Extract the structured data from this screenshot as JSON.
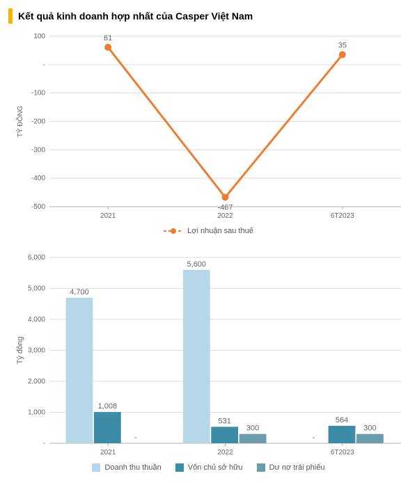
{
  "title": "Kết quả kinh doanh hợp nhất của Casper Việt Nam",
  "accent_color": "#f7b500",
  "line_chart": {
    "type": "line",
    "ylabel": "TỶ ĐỒNG",
    "label_fontsize": 10,
    "categories": [
      "2021",
      "2022",
      "6T2023"
    ],
    "values": [
      61,
      -467,
      35
    ],
    "line_color": "#ed7d31",
    "line_width": 3,
    "marker_color": "#ed7d31",
    "marker_size": 5,
    "ylim": [
      -500,
      100
    ],
    "ytick_step": 100,
    "grid_color": "#dcdcdc",
    "axis_color": "#b0b0b0",
    "text_color": "#666666",
    "legend_label": "Lợi nhuận sau thuế",
    "data_label_fontsize": 11,
    "tick_fontsize": 10
  },
  "bar_chart": {
    "type": "grouped_bar",
    "ylabel": "Tỷ đồng",
    "label_fontsize": 11,
    "categories": [
      "2021",
      "2022",
      "6T2023"
    ],
    "series": [
      {
        "name": "Doanh thu thuần",
        "color": "#b6d7e8",
        "values": [
          4700,
          5600,
          null
        ]
      },
      {
        "name": "Vốn chủ sở hữu",
        "color": "#3c8ca8",
        "values": [
          1008,
          531,
          564
        ]
      },
      {
        "name": "Dư nợ trái phiếu",
        "color": "#6a9cad",
        "values": [
          null,
          300,
          300
        ]
      }
    ],
    "data_labels": {
      "2021": [
        "4,700",
        "1,008",
        "-"
      ],
      "2022": [
        "5,600",
        "531",
        "300"
      ],
      "6T2023": [
        "-",
        "564",
        "300"
      ]
    },
    "ylim": [
      0,
      6000
    ],
    "ytick_step": 1000,
    "grid_color": "#dcdcdc",
    "axis_color": "#b0b0b0",
    "text_color": "#666666",
    "bar_group_width": 0.72,
    "data_label_fontsize": 11,
    "tick_fontsize": 10
  }
}
